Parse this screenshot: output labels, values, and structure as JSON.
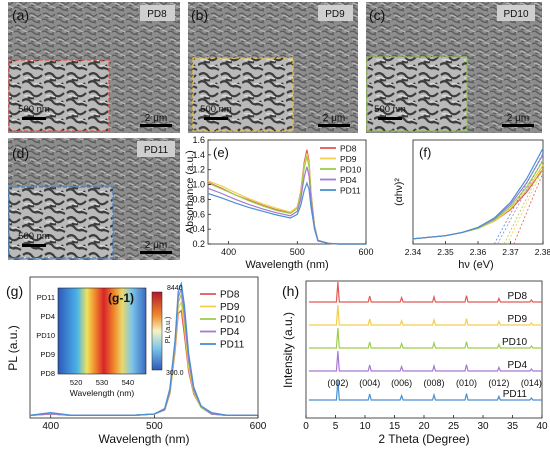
{
  "panels": {
    "a": {
      "letter": "(a)",
      "sample": "PD8",
      "scale_main": "2 μm",
      "scale_inset": "500 nm",
      "inset_color": "#e0564f"
    },
    "b": {
      "letter": "(b)",
      "sample": "PD9",
      "scale_main": "2 μm",
      "scale_inset": "500 nm",
      "inset_color": "#e8c33a"
    },
    "c": {
      "letter": "(c)",
      "sample": "PD10",
      "scale_main": "2 μm",
      "scale_inset": "500 nm",
      "inset_color": "#8cc63f"
    },
    "d": {
      "letter": "(d)",
      "sample": "PD11",
      "scale_main": "2 μm",
      "scale_inset": "500 nm",
      "inset_color": "#3e7fc4"
    },
    "e": {
      "letter": "(e)"
    },
    "f": {
      "letter": "(f)"
    },
    "g": {
      "letter": "(g)",
      "inset_letter": "(g-1)"
    },
    "h": {
      "letter": "(h)"
    }
  },
  "colors": {
    "PD8": "#e05a57",
    "PD9": "#f2cf4a",
    "PD10": "#9ccf4c",
    "PD4": "#a678d4",
    "PD11": "#4a8fd1"
  },
  "chart_data": [
    {
      "id": "e",
      "type": "line",
      "xlabel": "Wavelength (nm)",
      "ylabel": "Absorbance (a.u.)",
      "xlim": [
        370,
        600
      ],
      "ylim": [
        0.2,
        1.6
      ],
      "xticks": [
        400,
        500,
        600
      ],
      "yticks": [
        0.2,
        0.4,
        0.6,
        0.8,
        1.0,
        1.2,
        1.4,
        1.6
      ],
      "legend": "top-right",
      "x": [
        370,
        390,
        410,
        430,
        450,
        470,
        490,
        500,
        505,
        510,
        514,
        517,
        520,
        525,
        530,
        545,
        560,
        580,
        600
      ],
      "series": [
        {
          "name": "PD8",
          "values": [
            1.03,
            0.95,
            0.86,
            0.79,
            0.72,
            0.66,
            0.62,
            0.7,
            0.9,
            1.3,
            1.47,
            1.32,
            0.9,
            0.45,
            0.25,
            0.21,
            0.2,
            0.2,
            0.2
          ]
        },
        {
          "name": "PD9",
          "values": [
            1.05,
            0.98,
            0.89,
            0.81,
            0.74,
            0.68,
            0.63,
            0.7,
            0.88,
            1.26,
            1.42,
            1.28,
            0.88,
            0.44,
            0.25,
            0.21,
            0.2,
            0.2,
            0.2
          ]
        },
        {
          "name": "PD10",
          "values": [
            1.02,
            0.94,
            0.86,
            0.78,
            0.71,
            0.65,
            0.61,
            0.68,
            0.86,
            1.22,
            1.38,
            1.24,
            0.86,
            0.44,
            0.25,
            0.21,
            0.2,
            0.2,
            0.2
          ]
        },
        {
          "name": "PD4",
          "values": [
            0.95,
            0.88,
            0.8,
            0.73,
            0.67,
            0.62,
            0.58,
            0.64,
            0.8,
            1.1,
            1.24,
            1.12,
            0.8,
            0.42,
            0.25,
            0.21,
            0.2,
            0.2,
            0.2
          ]
        },
        {
          "name": "PD11",
          "values": [
            0.88,
            0.82,
            0.75,
            0.69,
            0.64,
            0.59,
            0.55,
            0.6,
            0.72,
            0.92,
            1.02,
            0.94,
            0.7,
            0.4,
            0.24,
            0.21,
            0.2,
            0.2,
            0.2
          ]
        }
      ]
    },
    {
      "id": "f",
      "type": "line",
      "xlabel": "hν (eV)",
      "ylabel": "(αhν)²",
      "xlim": [
        2.34,
        2.38
      ],
      "xticks": [
        2.34,
        2.35,
        2.36,
        2.37,
        2.38
      ],
      "x": [
        2.34,
        2.35,
        2.355,
        2.36,
        2.365,
        2.37,
        2.375,
        2.38
      ],
      "series": [
        {
          "name": "PD8",
          "values": [
            0.05,
            0.08,
            0.11,
            0.15,
            0.22,
            0.33,
            0.5,
            0.72
          ]
        },
        {
          "name": "PD9",
          "values": [
            0.05,
            0.08,
            0.11,
            0.15,
            0.22,
            0.34,
            0.52,
            0.76
          ]
        },
        {
          "name": "PD10",
          "values": [
            0.05,
            0.08,
            0.11,
            0.15,
            0.23,
            0.36,
            0.55,
            0.8
          ]
        },
        {
          "name": "PD4",
          "values": [
            0.05,
            0.08,
            0.11,
            0.16,
            0.24,
            0.38,
            0.59,
            0.86
          ]
        },
        {
          "name": "PD11",
          "values": [
            0.05,
            0.08,
            0.11,
            0.16,
            0.25,
            0.4,
            0.63,
            0.92
          ]
        }
      ]
    },
    {
      "id": "g",
      "type": "line",
      "xlabel": "Wavelength (nm)",
      "ylabel": "PL (a.u.)",
      "xlim": [
        380,
        600
      ],
      "xticks": [
        400,
        500,
        600
      ],
      "legend": "top-right",
      "x": [
        380,
        400,
        420,
        440,
        460,
        480,
        500,
        510,
        515,
        520,
        523,
        526,
        529,
        533,
        538,
        545,
        555,
        570,
        600
      ],
      "series": [
        {
          "name": "PD8",
          "values": [
            0.02,
            0.03,
            0.02,
            0.02,
            0.02,
            0.02,
            0.03,
            0.06,
            0.18,
            0.5,
            0.78,
            0.8,
            0.62,
            0.35,
            0.18,
            0.08,
            0.03,
            0.02,
            0.02
          ]
        },
        {
          "name": "PD9",
          "values": [
            0.02,
            0.03,
            0.02,
            0.02,
            0.02,
            0.02,
            0.03,
            0.06,
            0.18,
            0.52,
            0.82,
            0.86,
            0.68,
            0.38,
            0.19,
            0.08,
            0.03,
            0.02,
            0.02
          ]
        },
        {
          "name": "PD10",
          "values": [
            0.02,
            0.03,
            0.02,
            0.02,
            0.02,
            0.02,
            0.03,
            0.06,
            0.19,
            0.54,
            0.86,
            0.92,
            0.74,
            0.42,
            0.2,
            0.08,
            0.03,
            0.02,
            0.02
          ]
        },
        {
          "name": "PD4",
          "values": [
            0.02,
            0.03,
            0.02,
            0.02,
            0.02,
            0.02,
            0.03,
            0.06,
            0.2,
            0.56,
            0.9,
            0.96,
            0.78,
            0.44,
            0.21,
            0.09,
            0.03,
            0.02,
            0.02
          ]
        },
        {
          "name": "PD11",
          "values": [
            0.02,
            0.04,
            0.02,
            0.02,
            0.02,
            0.02,
            0.03,
            0.07,
            0.22,
            0.58,
            0.94,
            1.0,
            0.84,
            0.48,
            0.23,
            0.09,
            0.04,
            0.02,
            0.02
          ]
        }
      ],
      "inset": {
        "type": "heatmap",
        "xlabel": "Wavelength (nm)",
        "xticks": [
          520,
          530,
          540
        ],
        "xlim": [
          513,
          547
        ],
        "rows": [
          "PD11",
          "PD4",
          "PD10",
          "PD9",
          "PD8"
        ],
        "colorbar": {
          "label": "PL (a.u.)",
          "max": "8440",
          "min": "300.0"
        }
      }
    },
    {
      "id": "h",
      "type": "line",
      "xlabel": "2 Theta (Degree)",
      "ylabel": "Intensity (a.u.)",
      "xlim": [
        0,
        40
      ],
      "xticks": [
        0,
        5,
        10,
        15,
        20,
        25,
        30,
        35,
        40
      ],
      "series_order": [
        "PD8",
        "PD9",
        "PD10",
        "PD4",
        "PD11"
      ],
      "peaks": [
        5.4,
        10.8,
        16.2,
        21.7,
        27.2,
        32.7,
        38.2
      ],
      "peak_rel_heights": [
        1.0,
        0.3,
        0.22,
        0.26,
        0.32,
        0.18,
        0.1
      ],
      "peak_labels": [
        "(002)",
        "(004)",
        "(006)",
        "(008)",
        "(010)",
        "(012)",
        "(014)"
      ]
    }
  ]
}
